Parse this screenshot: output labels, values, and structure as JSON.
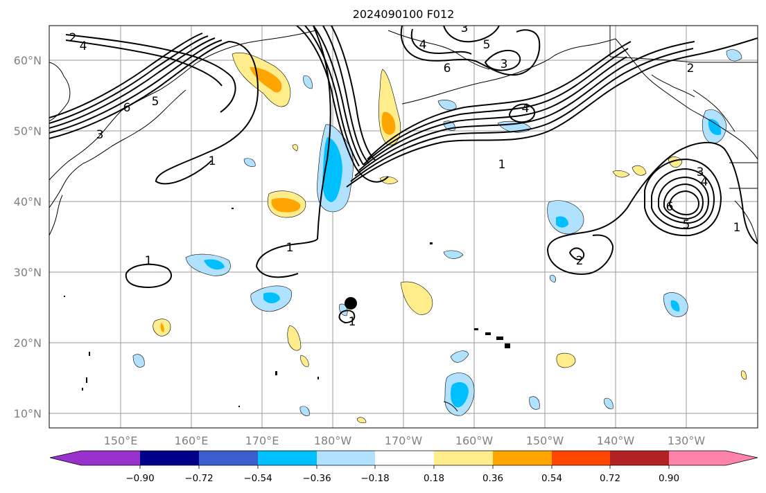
{
  "map": {
    "title": "2024090100 F012",
    "lat_labels": [
      "60°N",
      "50°N",
      "40°N",
      "30°N",
      "20°N",
      "10°N"
    ],
    "lon_labels": [
      "150°E",
      "160°E",
      "170°E",
      "180°W",
      "170°W",
      "160°W",
      "150°W",
      "140°W",
      "130°W"
    ],
    "contour_labels": [
      "2",
      "4",
      "6",
      "5",
      "3",
      "1",
      "1",
      "1",
      "3",
      "4",
      "5",
      "6",
      "3",
      "4",
      "1",
      "2",
      "3",
      "4",
      "5",
      "6",
      "1",
      "2",
      "1"
    ],
    "colors": {
      "neg_strong": "#00bfff",
      "neg_weak": "#b0e2ff",
      "pos_weak": "#ffec8b",
      "pos_strong": "#ffa500",
      "contour": "#000000",
      "grid": "#9a9a9a",
      "tick_text": "#808080"
    }
  },
  "colorbar": {
    "ticks": [
      "−0.90",
      "−0.72",
      "−0.54",
      "−0.36",
      "−0.18",
      "0.18",
      "0.36",
      "0.54",
      "0.72",
      "0.90"
    ],
    "colors": [
      "#9932cc",
      "#00008b",
      "#3a5fcd",
      "#00bfff",
      "#b0e2ff",
      "#ffffff",
      "#ffec8b",
      "#ffa500",
      "#ff4500",
      "#b22222",
      "#ff82ab"
    ]
  }
}
